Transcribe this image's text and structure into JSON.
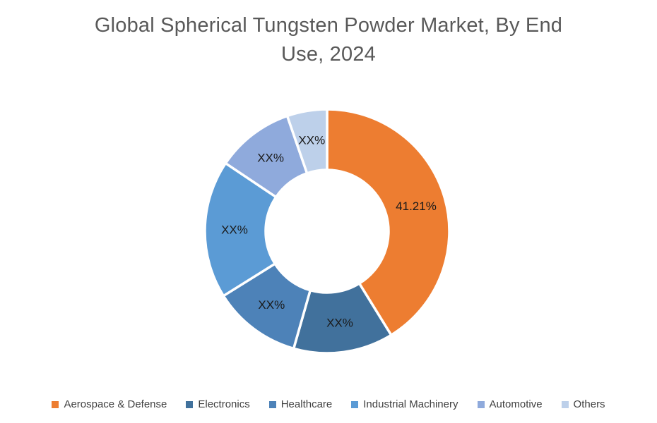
{
  "header": {
    "title_line1": "Global Spherical Tungsten Powder Market, By End",
    "title_line2": "Use, 2024"
  },
  "colors": {
    "background": "#ffffff",
    "title_text": "#595959",
    "slice_label_text": "#1a1a1a",
    "legend_text": "#404040",
    "slice_gap_stroke": "#ffffff"
  },
  "chart_data": {
    "type": "pie",
    "subtype": "donut",
    "title": "Global Spherical Tungsten Powder Market, By End Use, 2024",
    "legend_position": "bottom",
    "donut_hole_ratio": 0.5,
    "start_angle_deg": 0,
    "categories": [
      "Aerospace & Defense",
      "Electronics",
      "Healthcare",
      "Industrial Machinery",
      "Automotive",
      "Others"
    ],
    "values": [
      41.21,
      13.2,
      11.7,
      18.3,
      10.3,
      5.29
    ],
    "labels": [
      "41.21%",
      "XX%",
      "XX%",
      "XX%",
      "XX%",
      "XX%"
    ],
    "slice_colors": [
      "#ED7D31",
      "#41719C",
      "#4D82B8",
      "#5B9BD5",
      "#8FAADC",
      "#BDD0EA"
    ]
  }
}
